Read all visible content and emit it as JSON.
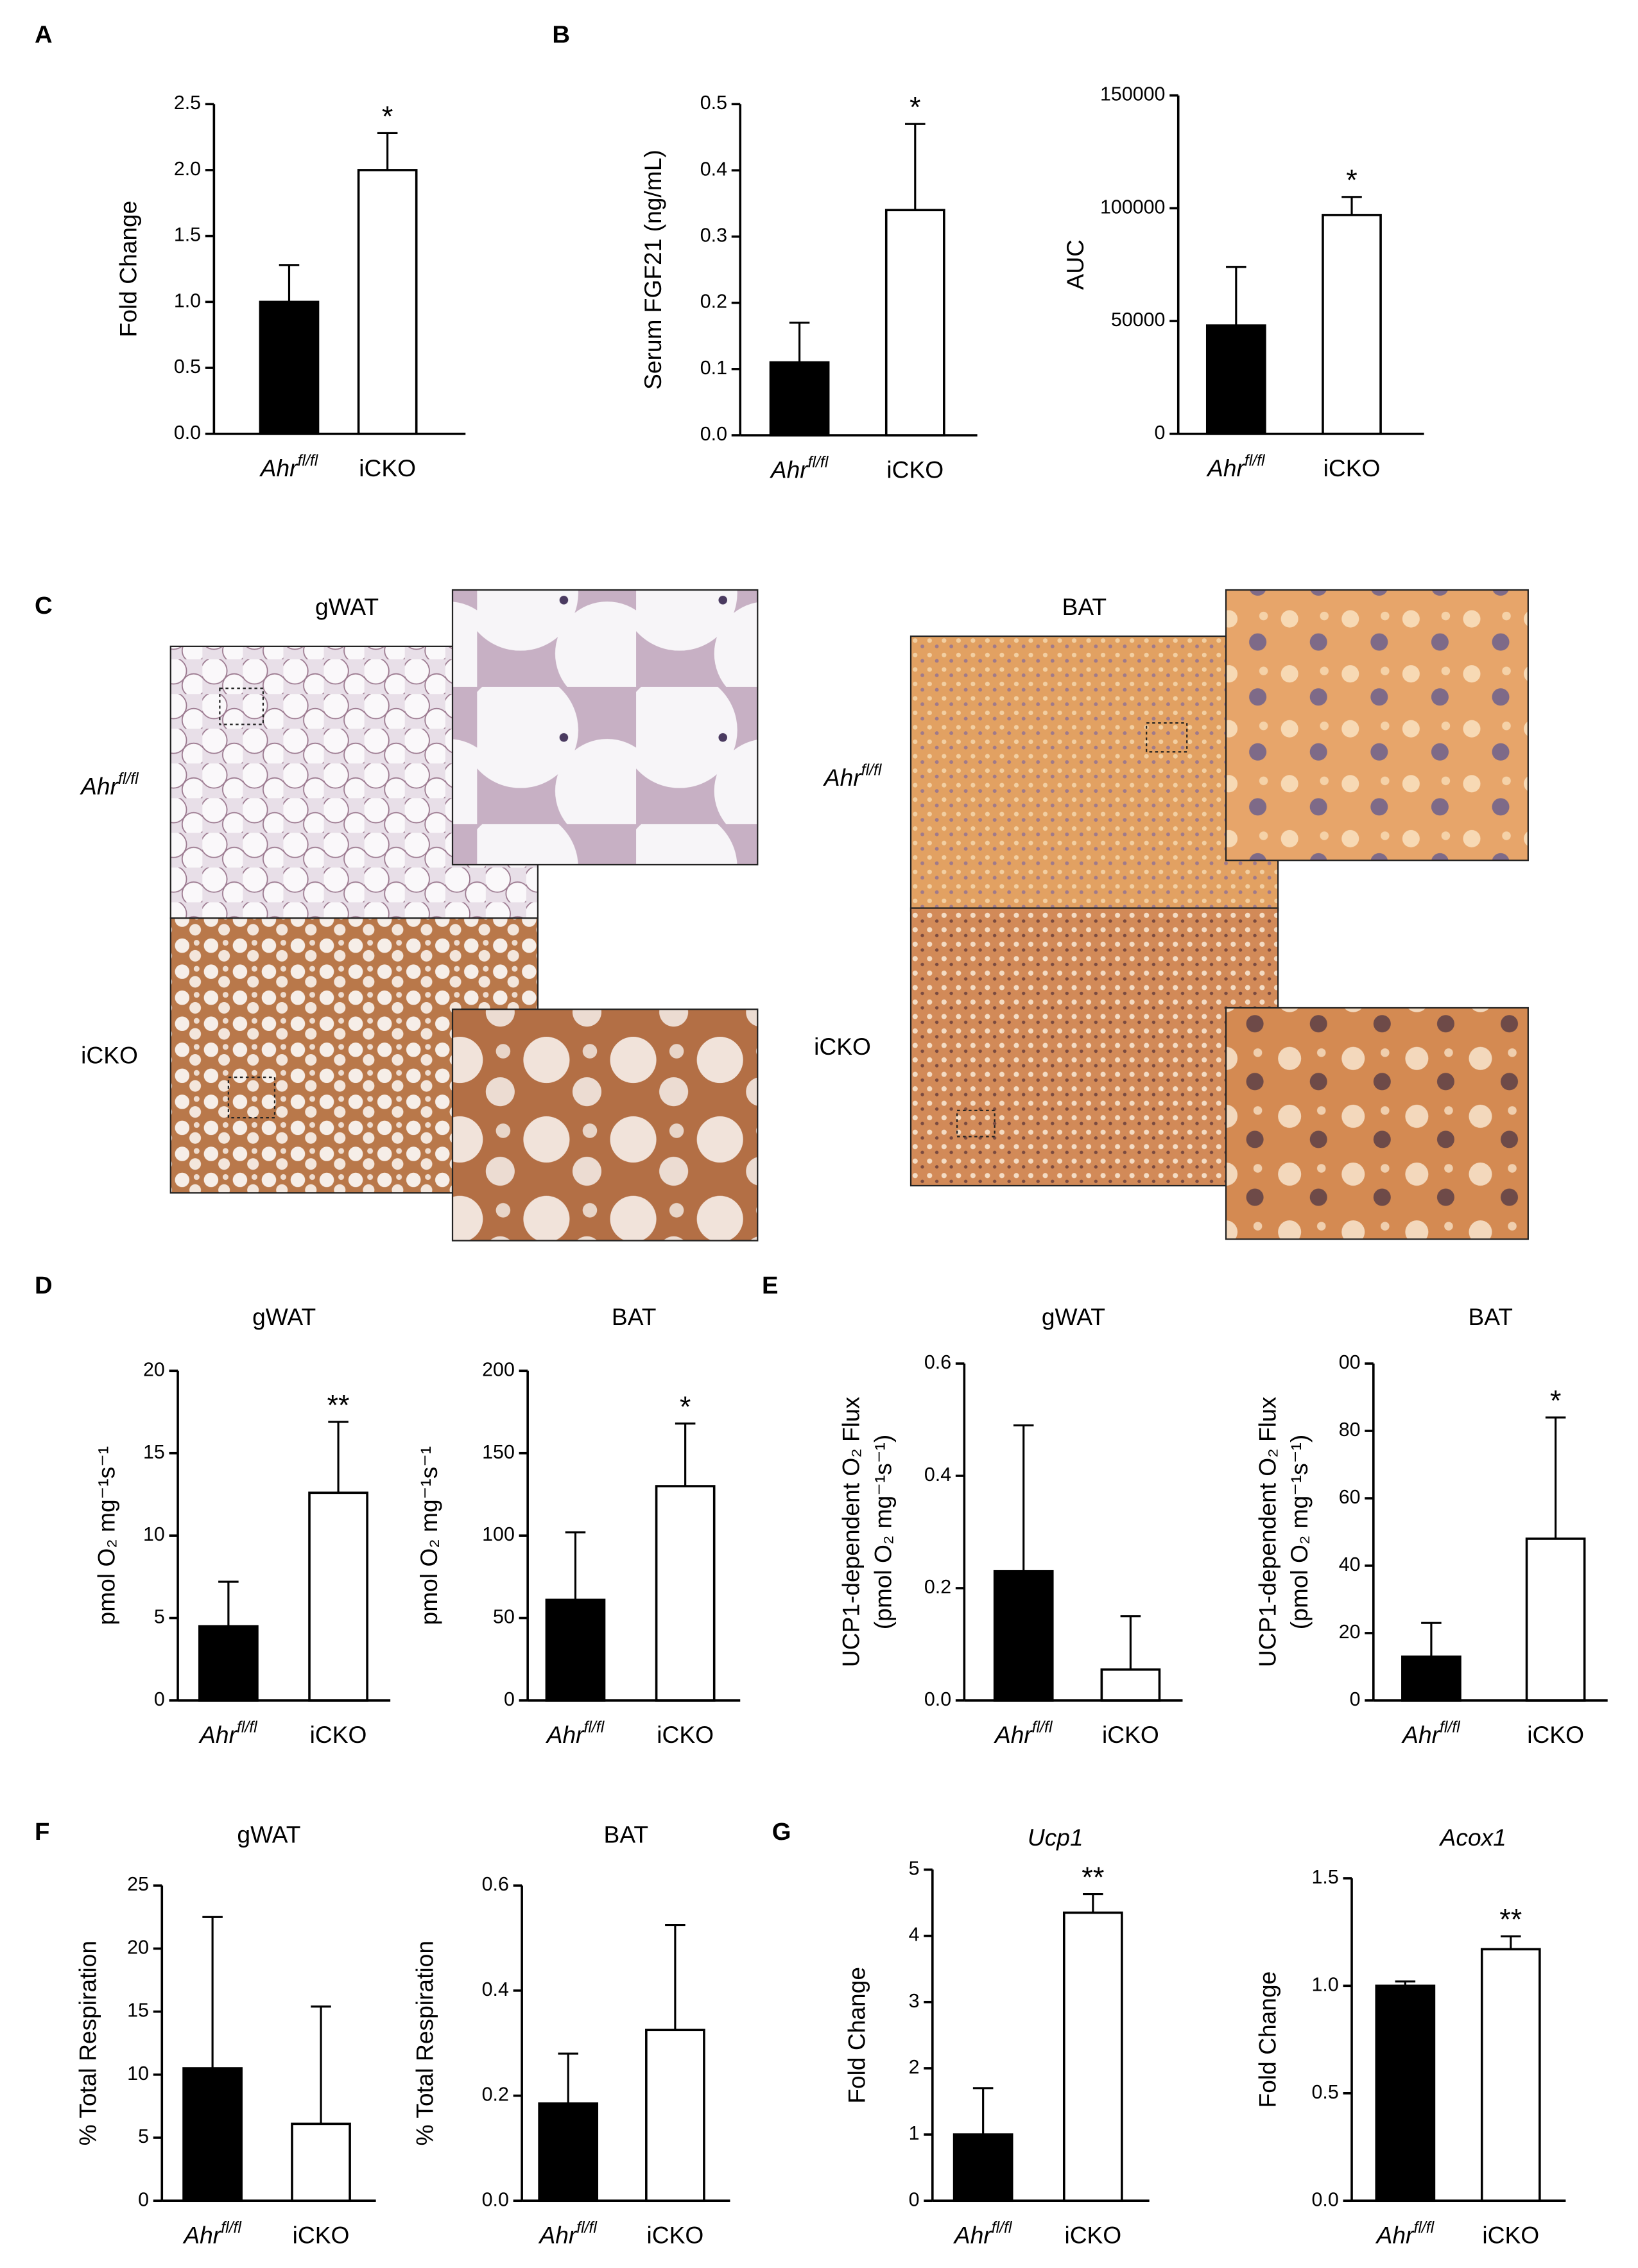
{
  "panel_labels": [
    "A",
    "B",
    "C",
    "D",
    "E",
    "F",
    "G"
  ],
  "histology": {
    "columns": [
      {
        "title": "gWAT"
      },
      {
        "title": "BAT"
      }
    ],
    "rows": [
      {
        "label": "Ahr",
        "superscript": "fl/fl"
      },
      {
        "label": "iCKO"
      }
    ]
  },
  "chart_data": [
    {
      "type": "bar",
      "ylabel": "Fold Change",
      "categories": [
        "Ahr",
        "iCKO"
      ],
      "category_superscripts": [
        "fl/fl",
        null
      ],
      "values": [
        1.0,
        2.0
      ],
      "errors": [
        0.28,
        0.28
      ],
      "significance": [
        null,
        "*"
      ],
      "colors": [
        "#000000",
        "#ffffff"
      ],
      "ylim": [
        0,
        2.5
      ],
      "yticks": [
        {
          "value": 0,
          "label": "0.0"
        },
        0.5,
        {
          "value": 1,
          "label": "1.0"
        },
        1.5,
        {
          "value": 2,
          "label": "2.0"
        },
        2.5
      ]
    },
    {
      "type": "bar",
      "ylabel": "Serum FGF21 (ng/mL)",
      "categories": [
        "Ahr",
        "iCKO"
      ],
      "category_superscripts": [
        "fl/fl",
        null
      ],
      "values": [
        0.11,
        0.34
      ],
      "errors": [
        0.06,
        0.13
      ],
      "significance": [
        null,
        "*"
      ],
      "colors": [
        "#000000",
        "#ffffff"
      ],
      "ylim": [
        0,
        0.5
      ],
      "yticks": [
        {
          "value": 0,
          "label": "0.0"
        },
        0.1,
        0.2,
        0.3,
        0.4,
        0.5
      ]
    },
    {
      "type": "bar",
      "ylabel": "AUC",
      "categories": [
        "Ahr",
        "iCKO"
      ],
      "category_superscripts": [
        "fl/fl",
        null
      ],
      "values": [
        48000,
        97000
      ],
      "errors": [
        26000,
        8000
      ],
      "significance": [
        null,
        "*"
      ],
      "colors": [
        "#000000",
        "#ffffff"
      ],
      "ylim": [
        0,
        150000
      ],
      "yticks": [
        0,
        50000,
        100000,
        150000
      ]
    },
    {
      "type": "bar",
      "title": "gWAT",
      "ylabel": "pmol O₂ mg⁻¹s⁻¹",
      "categories": [
        "Ahr",
        "iCKO"
      ],
      "category_superscripts": [
        "fl/fl",
        null
      ],
      "values": [
        4.5,
        12.6
      ],
      "errors": [
        2.7,
        4.3
      ],
      "significance": [
        null,
        "**"
      ],
      "colors": [
        "#000000",
        "#ffffff"
      ],
      "ylim": [
        0,
        20
      ],
      "yticks": [
        0,
        5,
        10,
        15,
        20
      ]
    },
    {
      "type": "bar",
      "title": "BAT",
      "ylabel": "pmol O₂ mg⁻¹s⁻¹",
      "categories": [
        "Ahr",
        "iCKO"
      ],
      "category_superscripts": [
        "fl/fl",
        null
      ],
      "values": [
        61,
        130
      ],
      "errors": [
        41,
        38
      ],
      "significance": [
        null,
        "*"
      ],
      "colors": [
        "#000000",
        "#ffffff"
      ],
      "ylim": [
        0,
        200
      ],
      "yticks": [
        0,
        50,
        100,
        150,
        200
      ]
    },
    {
      "type": "bar",
      "title": "gWAT",
      "ylabel": [
        "UCP1-dependent O₂ Flux",
        "(pmol O₂ mg⁻¹s⁻¹)"
      ],
      "categories": [
        "Ahr",
        "iCKO"
      ],
      "category_superscripts": [
        "fl/fl",
        null
      ],
      "values": [
        0.23,
        0.055
      ],
      "errors": [
        0.26,
        0.095
      ],
      "colors": [
        "#000000",
        "#ffffff"
      ],
      "ylim": [
        0,
        0.6
      ],
      "yticks": [
        {
          "value": 0,
          "label": "0.0"
        },
        0.2,
        0.4,
        0.6
      ]
    },
    {
      "type": "bar",
      "title": "BAT",
      "ylabel": [
        "UCP1-dependent O₂ Flux",
        "(pmol O₂ mg⁻¹s⁻¹)"
      ],
      "categories": [
        "Ahr",
        "iCKO"
      ],
      "category_superscripts": [
        "fl/fl",
        null
      ],
      "values": [
        13,
        48
      ],
      "errors": [
        10,
        36
      ],
      "significance": [
        null,
        "*"
      ],
      "colors": [
        "#000000",
        "#ffffff"
      ],
      "ylim": [
        0,
        100
      ],
      "yticks": [
        0,
        20,
        40,
        60,
        80,
        {
          "value": 100,
          "label": "00"
        }
      ]
    },
    {
      "type": "bar",
      "title": "gWAT",
      "ylabel": "% Total Respiration",
      "categories": [
        "Ahr",
        "iCKO"
      ],
      "category_superscripts": [
        "fl/fl",
        null
      ],
      "values": [
        10.5,
        6.1
      ],
      "errors": [
        12,
        9.3
      ],
      "colors": [
        "#000000",
        "#ffffff"
      ],
      "ylim": [
        0,
        25
      ],
      "yticks": [
        0,
        5,
        10,
        15,
        20,
        25
      ]
    },
    {
      "type": "bar",
      "title": "BAT",
      "ylabel": "% Total Respiration",
      "categories": [
        "Ahr",
        "iCKO"
      ],
      "category_superscripts": [
        "fl/fl",
        null
      ],
      "values": [
        0.185,
        0.325
      ],
      "errors": [
        0.095,
        0.2
      ],
      "colors": [
        "#000000",
        "#ffffff"
      ],
      "ylim": [
        0,
        0.6
      ],
      "yticks": [
        {
          "value": 0,
          "label": "0.0"
        },
        0.2,
        0.4,
        0.6
      ]
    },
    {
      "type": "bar",
      "title": "Ucp1",
      "ylabel": "Fold Change",
      "categories": [
        "Ahr",
        "iCKO"
      ],
      "category_superscripts": [
        "fl/fl",
        null
      ],
      "values": [
        1.0,
        4.35
      ],
      "errors": [
        0.7,
        0.28
      ],
      "significance": [
        null,
        "**"
      ],
      "colors": [
        "#000000",
        "#ffffff"
      ],
      "ylim": [
        0,
        5
      ],
      "yticks": [
        0,
        1,
        2,
        3,
        4,
        5
      ]
    },
    {
      "type": "bar",
      "title": "Acox1",
      "ylabel": "Fold Change",
      "categories": [
        "Ahr",
        "iCKO"
      ],
      "category_superscripts": [
        "fl/fl",
        null
      ],
      "values": [
        1.0,
        1.17
      ],
      "errors": [
        0.02,
        0.06
      ],
      "significance": [
        null,
        "**"
      ],
      "colors": [
        "#000000",
        "#ffffff"
      ],
      "ylim": [
        0,
        1.5
      ],
      "yticks": [
        {
          "value": 0,
          "label": "0.0"
        },
        0.5,
        {
          "value": 1,
          "label": "1.0"
        },
        1.5
      ]
    }
  ]
}
